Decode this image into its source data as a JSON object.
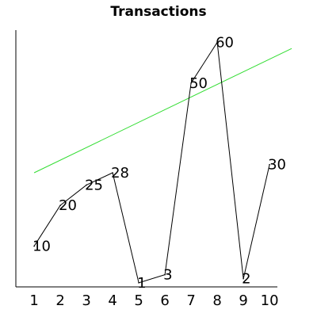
{
  "chart_data": {
    "type": "line",
    "title": "Transactions",
    "xlabel": "",
    "ylabel": "",
    "x": [
      1,
      2,
      3,
      4,
      5,
      6,
      7,
      8,
      9,
      10
    ],
    "values": [
      10,
      20,
      25,
      28,
      1,
      3,
      50,
      60,
      2,
      30
    ],
    "data_labels": [
      "10",
      "20",
      "25",
      "28",
      "1",
      "3",
      "50",
      "60",
      "2",
      "30"
    ],
    "x_tick_labels": [
      "1",
      "2",
      "3",
      "4",
      "5",
      "6",
      "7",
      "8",
      "9",
      "10"
    ],
    "xlim": [
      0.3,
      10.3
    ],
    "ylim": [
      0,
      63
    ],
    "trendline": {
      "y_start": 28,
      "y_end": 58.5,
      "color": "#33dd33"
    },
    "line_color": "#000000",
    "grid": false,
    "legend": "none"
  }
}
